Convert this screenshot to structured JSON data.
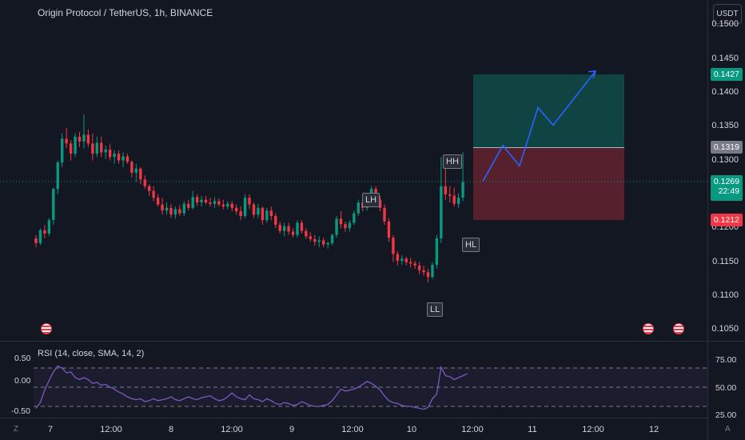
{
  "header": {
    "title": "Origin Protocol / TetherUS, 1h, BINANCE",
    "currency_button": "USDT"
  },
  "price_axis": {
    "ticks": [
      "0.1500",
      "0.1450",
      "0.1400",
      "0.1350",
      "0.1300",
      "0.1250",
      "0.1200",
      "0.1150",
      "0.1100",
      "0.1050"
    ],
    "labels": {
      "target": {
        "value": "0.1427",
        "color": "#089981"
      },
      "entry": {
        "value": "0.1319",
        "color": "#787b86"
      },
      "current": {
        "value": "0.1269",
        "color": "#089981"
      },
      "countdown": "22:49",
      "stop": {
        "value": "0.1212",
        "color": "#f23645"
      }
    }
  },
  "time_axis": {
    "ticks": [
      "7",
      "12:00",
      "8",
      "12:00",
      "9",
      "12:00",
      "10",
      "12:00",
      "11",
      "12:00",
      "12"
    ]
  },
  "annotations": [
    "LH",
    "HH",
    "HL",
    "LL"
  ],
  "rsi": {
    "title": "RSI (14, close, SMA, 14, 2)",
    "left_ticks": [
      "0.50",
      "0.00",
      "-0.50"
    ],
    "right_ticks": [
      "75.00",
      "50.00",
      "25.00"
    ],
    "line_color": "#7e57c2"
  },
  "corner_icons": {
    "left": "Z",
    "right": "A"
  },
  "chart_data": {
    "type": "candlestick",
    "symbol": "Origin Protocol / TetherUS",
    "interval": "1h",
    "exchange": "BINANCE",
    "ylim": [
      0.1035,
      0.1525
    ],
    "candles": [
      [
        0.1185,
        0.119,
        0.1172,
        0.1178
      ],
      [
        0.1178,
        0.12,
        0.1175,
        0.1197
      ],
      [
        0.1197,
        0.1205,
        0.1185,
        0.1192
      ],
      [
        0.1192,
        0.1215,
        0.1188,
        0.1212
      ],
      [
        0.1212,
        0.126,
        0.1205,
        0.1258
      ],
      [
        0.1258,
        0.13,
        0.125,
        0.1297
      ],
      [
        0.1297,
        0.134,
        0.129,
        0.1332
      ],
      [
        0.1332,
        0.1348,
        0.1318,
        0.1325
      ],
      [
        0.1325,
        0.133,
        0.13,
        0.131
      ],
      [
        0.131,
        0.134,
        0.1305,
        0.1335
      ],
      [
        0.1335,
        0.1342,
        0.132,
        0.1328
      ],
      [
        0.1328,
        0.1368,
        0.1318,
        0.1338
      ],
      [
        0.1338,
        0.1346,
        0.132,
        0.1325
      ],
      [
        0.1325,
        0.134,
        0.13,
        0.131
      ],
      [
        0.131,
        0.1335,
        0.1305,
        0.1326
      ],
      [
        0.1326,
        0.1335,
        0.1305,
        0.1312
      ],
      [
        0.1312,
        0.1322,
        0.1302,
        0.1316
      ],
      [
        0.1316,
        0.1325,
        0.13,
        0.1305
      ],
      [
        0.1305,
        0.1315,
        0.1295,
        0.131
      ],
      [
        0.131,
        0.1315,
        0.1295,
        0.13
      ],
      [
        0.13,
        0.1312,
        0.129,
        0.1306
      ],
      [
        0.1306,
        0.131,
        0.1295,
        0.1298
      ],
      [
        0.1298,
        0.13,
        0.1275,
        0.1282
      ],
      [
        0.1282,
        0.1295,
        0.1268,
        0.1288
      ],
      [
        0.1288,
        0.129,
        0.1265,
        0.1272
      ],
      [
        0.1272,
        0.1278,
        0.1258,
        0.1262
      ],
      [
        0.1262,
        0.1265,
        0.1248,
        0.1255
      ],
      [
        0.1255,
        0.1262,
        0.124,
        0.1245
      ],
      [
        0.1245,
        0.125,
        0.1232,
        0.1235
      ],
      [
        0.1235,
        0.1245,
        0.122,
        0.1226
      ],
      [
        0.1226,
        0.1238,
        0.122,
        0.123
      ],
      [
        0.123,
        0.1236,
        0.1215,
        0.122
      ],
      [
        0.122,
        0.1232,
        0.1214,
        0.1228
      ],
      [
        0.1228,
        0.1234,
        0.1218,
        0.1222
      ],
      [
        0.1222,
        0.124,
        0.1218,
        0.1236
      ],
      [
        0.1236,
        0.1242,
        0.1226,
        0.123
      ],
      [
        0.123,
        0.1255,
        0.1228,
        0.1246
      ],
      [
        0.1246,
        0.125,
        0.1233,
        0.1238
      ],
      [
        0.1238,
        0.1248,
        0.1232,
        0.1242
      ],
      [
        0.1242,
        0.1248,
        0.1235,
        0.1238
      ],
      [
        0.1238,
        0.1245,
        0.1232,
        0.1236
      ],
      [
        0.1236,
        0.1246,
        0.123,
        0.124
      ],
      [
        0.124,
        0.1244,
        0.1232,
        0.1235
      ],
      [
        0.1235,
        0.1242,
        0.1228,
        0.1232
      ],
      [
        0.1232,
        0.124,
        0.1228,
        0.1236
      ],
      [
        0.1236,
        0.124,
        0.1225,
        0.123
      ],
      [
        0.123,
        0.1235,
        0.122,
        0.1225
      ],
      [
        0.1225,
        0.1232,
        0.1212,
        0.1218
      ],
      [
        0.1218,
        0.125,
        0.1215,
        0.1245
      ],
      [
        0.1245,
        0.125,
        0.1228,
        0.1235
      ],
      [
        0.1235,
        0.1238,
        0.1215,
        0.122
      ],
      [
        0.122,
        0.1236,
        0.1215,
        0.123
      ],
      [
        0.123,
        0.1232,
        0.1205,
        0.1212
      ],
      [
        0.1212,
        0.123,
        0.1208,
        0.1226
      ],
      [
        0.1226,
        0.1232,
        0.1212,
        0.1218
      ],
      [
        0.1218,
        0.1222,
        0.12,
        0.1205
      ],
      [
        0.1205,
        0.121,
        0.1192,
        0.1196
      ],
      [
        0.1196,
        0.1208,
        0.1188,
        0.1203
      ],
      [
        0.1203,
        0.1208,
        0.119,
        0.1195
      ],
      [
        0.1195,
        0.12,
        0.1186,
        0.119
      ],
      [
        0.119,
        0.1212,
        0.1186,
        0.1208
      ],
      [
        0.1208,
        0.1212,
        0.1192,
        0.1196
      ],
      [
        0.1196,
        0.12,
        0.1184,
        0.1188
      ],
      [
        0.1188,
        0.1194,
        0.118,
        0.1184
      ],
      [
        0.1184,
        0.119,
        0.1174,
        0.118
      ],
      [
        0.118,
        0.1188,
        0.1172,
        0.1182
      ],
      [
        0.1182,
        0.1186,
        0.1172,
        0.1176
      ],
      [
        0.1176,
        0.118,
        0.117,
        0.1178
      ],
      [
        0.1178,
        0.1192,
        0.1175,
        0.119
      ],
      [
        0.119,
        0.1218,
        0.1186,
        0.1214
      ],
      [
        0.1214,
        0.1225,
        0.12,
        0.1206
      ],
      [
        0.1206,
        0.121,
        0.1195,
        0.12
      ],
      [
        0.12,
        0.1212,
        0.1195,
        0.1208
      ],
      [
        0.1208,
        0.1226,
        0.1205,
        0.1222
      ],
      [
        0.1222,
        0.1242,
        0.1218,
        0.1238
      ],
      [
        0.1238,
        0.1245,
        0.1225,
        0.123
      ],
      [
        0.123,
        0.1252,
        0.1226,
        0.1248
      ],
      [
        0.1248,
        0.1262,
        0.124,
        0.1258
      ],
      [
        0.1258,
        0.1262,
        0.1238,
        0.1242
      ],
      [
        0.1242,
        0.1248,
        0.1225,
        0.123
      ],
      [
        0.123,
        0.1235,
        0.1205,
        0.121
      ],
      [
        0.121,
        0.1215,
        0.118,
        0.1186
      ],
      [
        0.1186,
        0.119,
        0.115,
        0.1162
      ],
      [
        0.1162,
        0.1166,
        0.1145,
        0.1152
      ],
      [
        0.1152,
        0.116,
        0.1146,
        0.1155
      ],
      [
        0.1155,
        0.1158,
        0.1145,
        0.115
      ],
      [
        0.115,
        0.1156,
        0.1142,
        0.1148
      ],
      [
        0.1148,
        0.1152,
        0.114,
        0.1145
      ],
      [
        0.1145,
        0.115,
        0.1132,
        0.1138
      ],
      [
        0.1138,
        0.1145,
        0.113,
        0.1135
      ],
      [
        0.1135,
        0.114,
        0.112,
        0.1128
      ],
      [
        0.1128,
        0.115,
        0.1125,
        0.1146
      ],
      [
        0.1146,
        0.119,
        0.114,
        0.1185
      ],
      [
        0.1185,
        0.1305,
        0.1178,
        0.1262
      ],
      [
        0.1262,
        0.1302,
        0.1242,
        0.125
      ],
      [
        0.125,
        0.1262,
        0.1238,
        0.1248
      ],
      [
        0.1248,
        0.126,
        0.1232,
        0.1236
      ],
      [
        0.1236,
        0.1252,
        0.123,
        0.1245
      ],
      [
        0.1245,
        0.1312,
        0.124,
        0.1268
      ]
    ],
    "position": {
      "target": 0.1427,
      "entry": 0.1319,
      "stop": 0.1212
    },
    "current_price": 0.1269,
    "projection_path": [
      0.1269,
      0.1322,
      0.1292,
      0.1378,
      0.1352,
      0.1432
    ],
    "rsi_values": [
      28,
      34,
      47,
      57,
      66,
      72,
      70,
      65,
      66,
      60,
      58,
      60,
      58,
      54,
      55,
      52,
      53,
      50,
      48,
      45,
      43,
      40,
      38,
      37,
      38,
      35,
      36,
      38,
      36,
      37,
      38,
      40,
      37,
      36,
      38,
      40,
      38,
      37,
      39,
      40,
      41,
      38,
      36,
      37,
      40,
      44,
      40,
      38,
      37,
      42,
      38,
      37,
      35,
      38,
      36,
      33,
      32,
      34,
      33,
      31,
      32,
      35,
      33,
      31,
      30,
      30,
      31,
      32,
      36,
      42,
      48,
      46,
      47,
      48,
      50,
      53,
      56,
      54,
      51,
      47,
      41,
      36,
      34,
      33,
      31,
      30,
      30,
      29,
      28,
      27,
      29,
      38,
      43,
      71,
      62,
      61,
      58,
      60,
      62,
      64
    ]
  }
}
